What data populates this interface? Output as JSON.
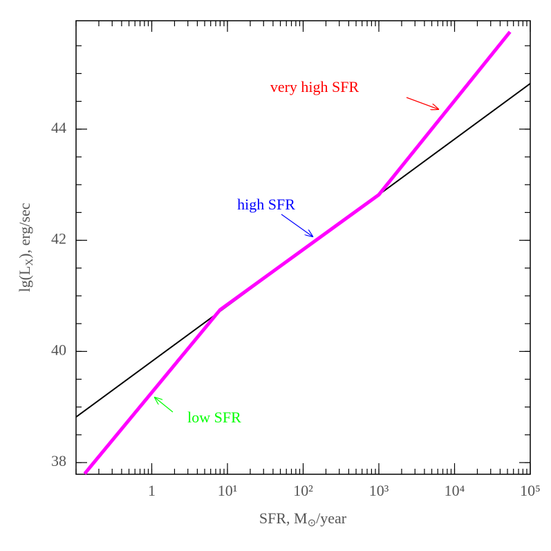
{
  "chart_data": {
    "type": "line",
    "xlabel": [
      "SFR, M",
      "⊙",
      "/year"
    ],
    "ylabel": [
      "lg(L",
      "X",
      "), erg/sec"
    ],
    "xscale": "log",
    "xlim": [
      0.1,
      100000
    ],
    "xticks": [
      1,
      {
        "value": 10,
        "label": "10¹"
      },
      {
        "value": 100,
        "label": "10²"
      },
      {
        "value": 1000,
        "label": "10³"
      },
      {
        "value": 10000,
        "label": "10⁴"
      },
      {
        "value": 100000,
        "label": "10⁵"
      }
    ],
    "ylim": [
      37.79,
      45.95
    ],
    "yticks": [
      38,
      40,
      42,
      44
    ],
    "minor_ticks": true,
    "grid": false,
    "series": [
      {
        "color": "#000000",
        "x": [
          0.1,
          100000
        ],
        "values": [
          38.82,
          44.82
        ]
      },
      {
        "color": "#ff00ff",
        "x": [
          0.13,
          8,
          1000,
          54000
        ],
        "values": [
          37.8,
          40.75,
          42.82,
          45.75
        ]
      }
    ],
    "annotations": [
      {
        "text": "very high SFR",
        "color": "#ff0000"
      },
      {
        "text": "high SFR",
        "color": "#0000ff"
      },
      {
        "text": "low SFR",
        "color": "#00ff00"
      }
    ]
  }
}
